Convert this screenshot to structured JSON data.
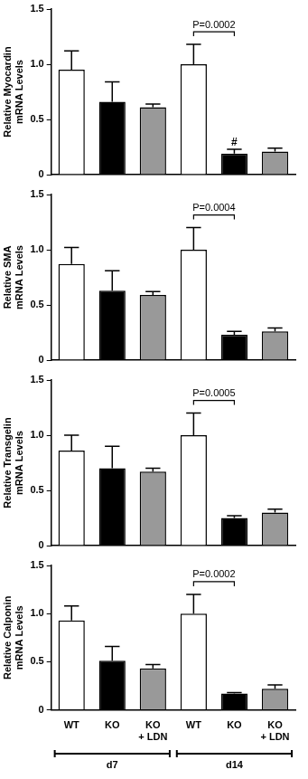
{
  "chart_data": [
    {
      "type": "bar",
      "y_label": "Relative Myocardin mRNA Levels",
      "categories": [
        "WT",
        "KO",
        "KO + LDN",
        "WT",
        "KO",
        "KO + LDN"
      ],
      "values": [
        0.95,
        0.66,
        0.61,
        1.0,
        0.19,
        0.21
      ],
      "errors": [
        0.17,
        0.18,
        0.03,
        0.18,
        0.04,
        0.03
      ],
      "colors": [
        "#ffffff",
        "#000000",
        "#999999",
        "#ffffff",
        "#000000",
        "#999999"
      ],
      "ylim": [
        0,
        1.5
      ],
      "yticks": [
        0,
        0.5,
        {
          "value": 1,
          "label": "1.0"
        },
        1.5
      ],
      "grid": false,
      "tick_labels": "y",
      "annotations": [
        {
          "text": "P=0.0002",
          "bars": [
            3,
            4
          ]
        },
        {
          "text": "#",
          "bars": [
            4
          ]
        }
      ]
    },
    {
      "type": "bar",
      "y_label": "Relative SMA mRNA Levels",
      "categories": [
        "WT",
        "KO",
        "KO + LDN",
        "WT",
        "KO",
        "KO + LDN"
      ],
      "values": [
        0.87,
        0.63,
        0.59,
        1.0,
        0.23,
        0.26
      ],
      "errors": [
        0.15,
        0.18,
        0.03,
        0.2,
        0.03,
        0.03
      ],
      "colors": [
        "#ffffff",
        "#000000",
        "#999999",
        "#ffffff",
        "#000000",
        "#999999"
      ],
      "ylim": [
        0,
        1.5
      ],
      "yticks": [
        0,
        0.5,
        {
          "value": 1,
          "label": "1.0"
        },
        1.5
      ],
      "grid": false,
      "tick_labels": "y",
      "annotations": [
        {
          "text": "P=0.0004",
          "bars": [
            3,
            4
          ]
        }
      ]
    },
    {
      "type": "bar",
      "y_label": "Relative Transgelin mRNA Levels",
      "categories": [
        "WT",
        "KO",
        "KO + LDN",
        "WT",
        "KO",
        "KO + LDN"
      ],
      "values": [
        0.86,
        0.7,
        0.67,
        1.0,
        0.25,
        0.3
      ],
      "errors": [
        0.14,
        0.2,
        0.03,
        0.2,
        0.02,
        0.03
      ],
      "colors": [
        "#ffffff",
        "#000000",
        "#999999",
        "#ffffff",
        "#000000",
        "#999999"
      ],
      "ylim": [
        0,
        1.5
      ],
      "yticks": [
        0,
        0.5,
        {
          "value": 1,
          "label": "1.0"
        },
        1.5
      ],
      "grid": false,
      "tick_labels": "y",
      "annotations": [
        {
          "text": "P=0.0005",
          "bars": [
            3,
            4
          ]
        }
      ]
    },
    {
      "type": "bar",
      "y_label": "Relative Calponin mRNA Levels",
      "categories": [
        "WT",
        "KO",
        "KO + LDN",
        "WT",
        "KO",
        "KO + LDN"
      ],
      "groups": [
        "d7",
        "d7",
        "d7",
        "d14",
        "d14",
        "d14"
      ],
      "values": [
        0.93,
        0.51,
        0.43,
        1.0,
        0.17,
        0.22
      ],
      "errors": [
        0.15,
        0.15,
        0.04,
        0.2,
        0.01,
        0.04
      ],
      "colors": [
        "#ffffff",
        "#000000",
        "#999999",
        "#ffffff",
        "#000000",
        "#999999"
      ],
      "ylim": [
        0,
        1.5
      ],
      "yticks": [
        0,
        0.5,
        {
          "value": 1,
          "label": "1.0"
        },
        1.5
      ],
      "grid": false,
      "annotations": [
        {
          "text": "P=0.0002",
          "bars": [
            3,
            4
          ]
        }
      ]
    }
  ]
}
